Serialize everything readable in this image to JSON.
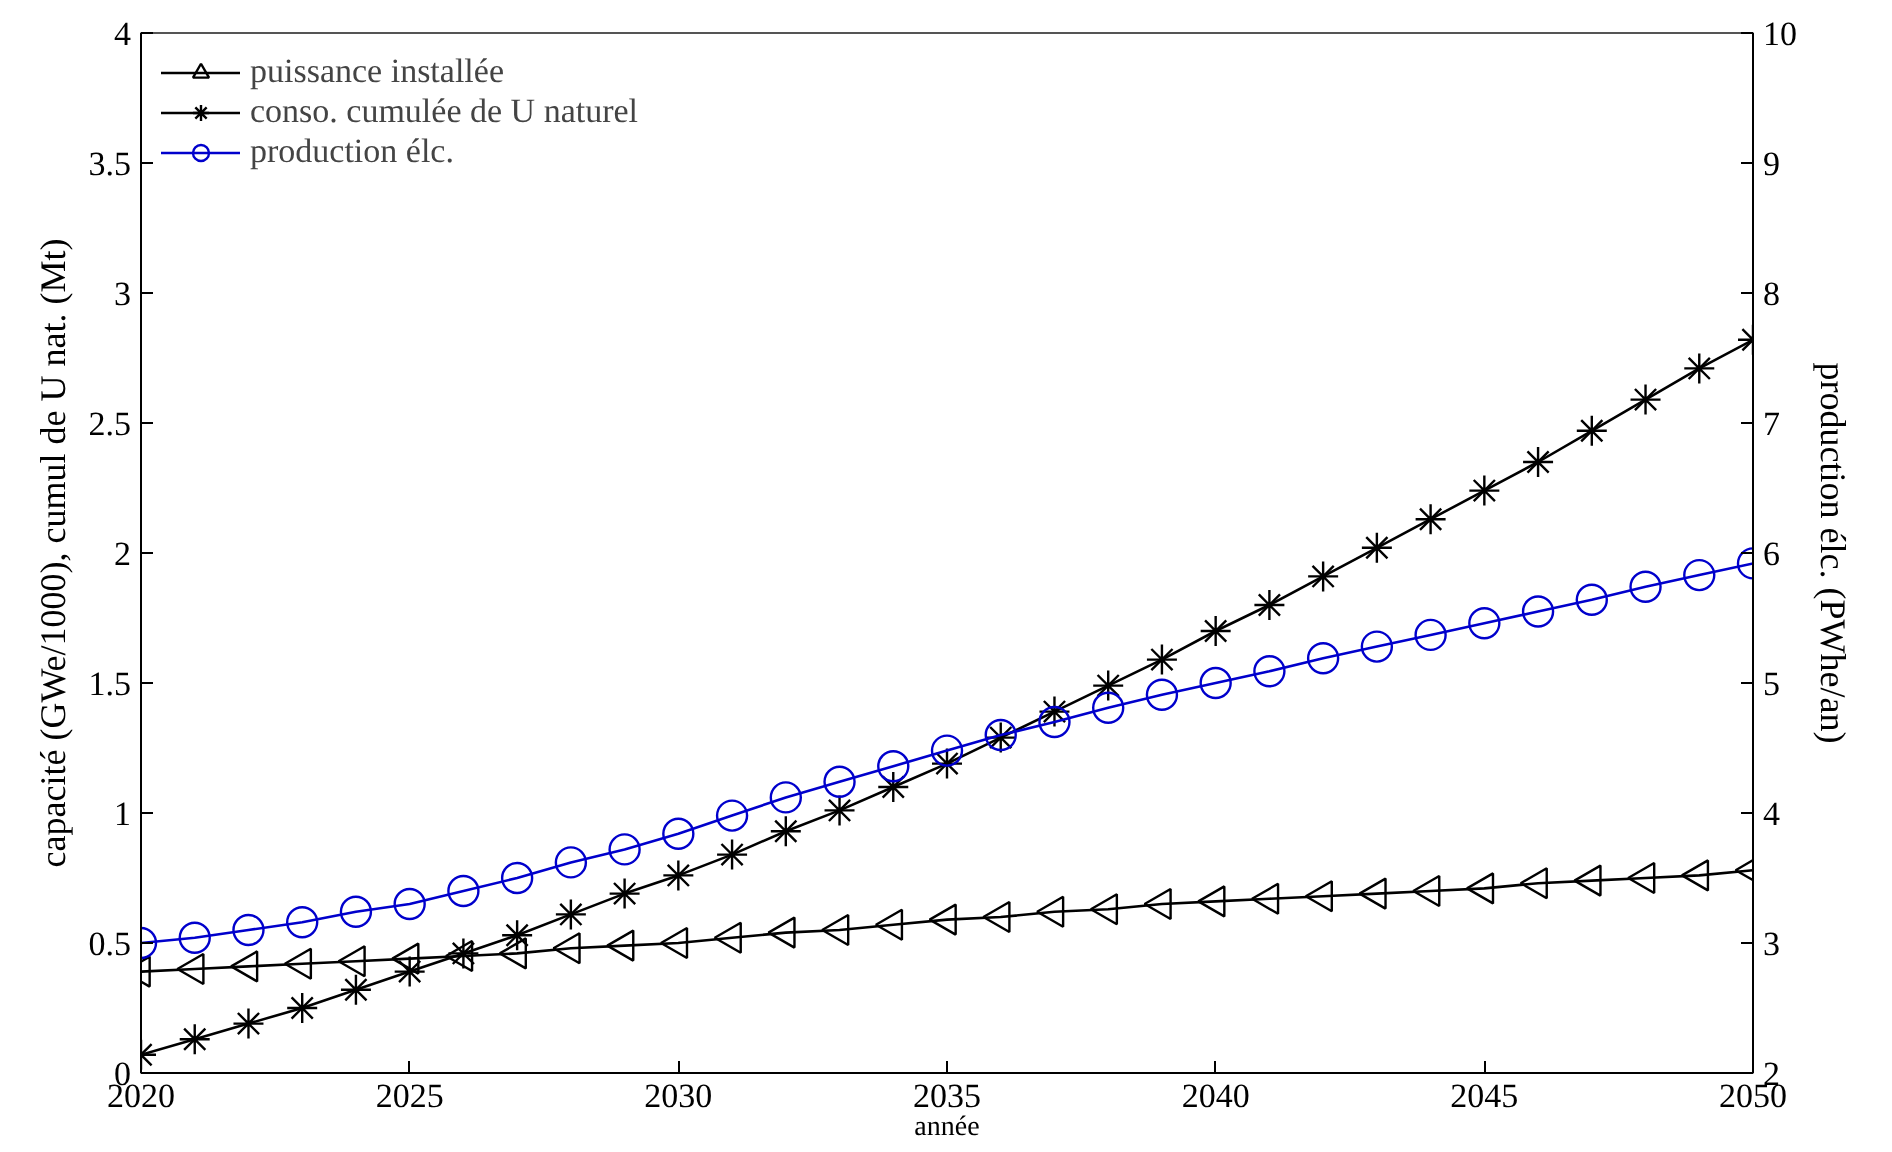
{
  "chart_data": {
    "type": "line",
    "xlabel": "année",
    "ylabel": "capacité (GWe/1000), cumul de U nat. (Mt)",
    "y2label": "production élc. (PWhe/an)",
    "x": [
      2020,
      2021,
      2022,
      2023,
      2024,
      2025,
      2026,
      2027,
      2028,
      2029,
      2030,
      2031,
      2032,
      2033,
      2034,
      2035,
      2036,
      2037,
      2038,
      2039,
      2040,
      2041,
      2042,
      2043,
      2044,
      2045,
      2046,
      2047,
      2048,
      2049,
      2050
    ],
    "xlim": [
      2020,
      2050
    ],
    "xticks": [
      2020,
      2025,
      2030,
      2035,
      2040,
      2045,
      2050
    ],
    "ylim": [
      0,
      4
    ],
    "yticks": [
      0,
      0.5,
      1,
      1.5,
      2,
      2.5,
      3,
      3.5,
      4
    ],
    "y2lim": [
      2,
      10
    ],
    "y2ticks": [
      2,
      3,
      4,
      5,
      6,
      7,
      8,
      9,
      10
    ],
    "grid": false,
    "legend": "top left",
    "line_style": "solid",
    "series": [
      {
        "name": "puissance installée",
        "color": "#000000",
        "marker": "triangle",
        "values": [
          0.39,
          0.4,
          0.41,
          0.42,
          0.43,
          0.44,
          0.45,
          0.46,
          0.48,
          0.49,
          0.5,
          0.52,
          0.54,
          0.55,
          0.57,
          0.59,
          0.6,
          0.62,
          0.63,
          0.65,
          0.66,
          0.67,
          0.68,
          0.69,
          0.7,
          0.71,
          0.73,
          0.74,
          0.75,
          0.76,
          0.78
        ]
      },
      {
        "name": "conso. cumulée de U naturel",
        "color": "#000000",
        "marker": "cross",
        "values": [
          0.07,
          0.13,
          0.19,
          0.25,
          0.32,
          0.39,
          0.46,
          0.53,
          0.61,
          0.69,
          0.76,
          0.84,
          0.93,
          1.01,
          1.1,
          1.19,
          1.29,
          1.39,
          1.49,
          1.59,
          1.7,
          1.8,
          1.91,
          2.02,
          2.13,
          2.24,
          2.35,
          2.47,
          2.59,
          2.71,
          2.82
        ]
      },
      {
        "name": "production élc.",
        "color": "#0000cc",
        "marker": "circle",
        "axis": "y2",
        "values": [
          3.0,
          3.04,
          3.1,
          3.16,
          3.24,
          3.3,
          3.4,
          3.5,
          3.62,
          3.72,
          3.84,
          3.98,
          4.12,
          4.24,
          4.36,
          4.48,
          4.6,
          4.7,
          4.81,
          4.91,
          5.0,
          5.09,
          5.19,
          5.28,
          5.37,
          5.46,
          5.55,
          5.64,
          5.74,
          5.83,
          5.92
        ]
      }
    ]
  }
}
